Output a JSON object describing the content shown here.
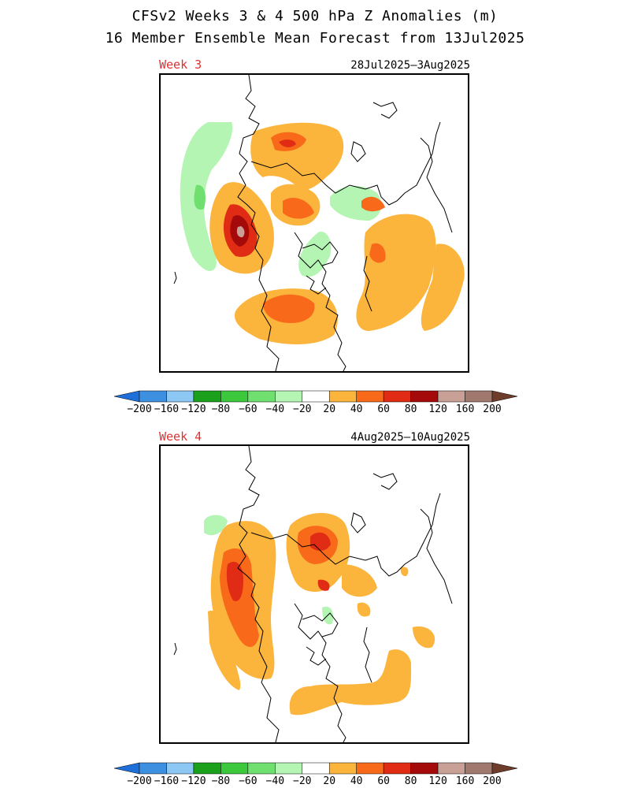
{
  "header": {
    "line1": "CFSv2 Weeks 3 & 4 500 hPa Z Anomalies (m)",
    "line2": "16 Member Ensemble Mean Forecast from 13Jul2025"
  },
  "panels": [
    {
      "week_label": "Week 3",
      "date_range": "28Jul2025–3Aug2025"
    },
    {
      "week_label": "Week 4",
      "date_range": "4Aug2025–10Aug2025"
    }
  ],
  "legend": {
    "unit": "m",
    "labels": [
      "-200",
      "-160",
      "-120",
      "-80",
      "-60",
      "-40",
      "-20",
      "20",
      "40",
      "60",
      "80",
      "120",
      "160",
      "200"
    ],
    "colors": [
      "#3d8fe0",
      "#8dc8f5",
      "#1aa01a",
      "#3cc83c",
      "#6fe06f",
      "#b4f5b4",
      "#ffffff",
      "#fbb43c",
      "#f86a1a",
      "#e02c14",
      "#a50a0a",
      "#c8a096",
      "#a0786e"
    ],
    "low_cap_color": "#1f6fd8",
    "high_cap_color": "#6e3c2a"
  }
}
